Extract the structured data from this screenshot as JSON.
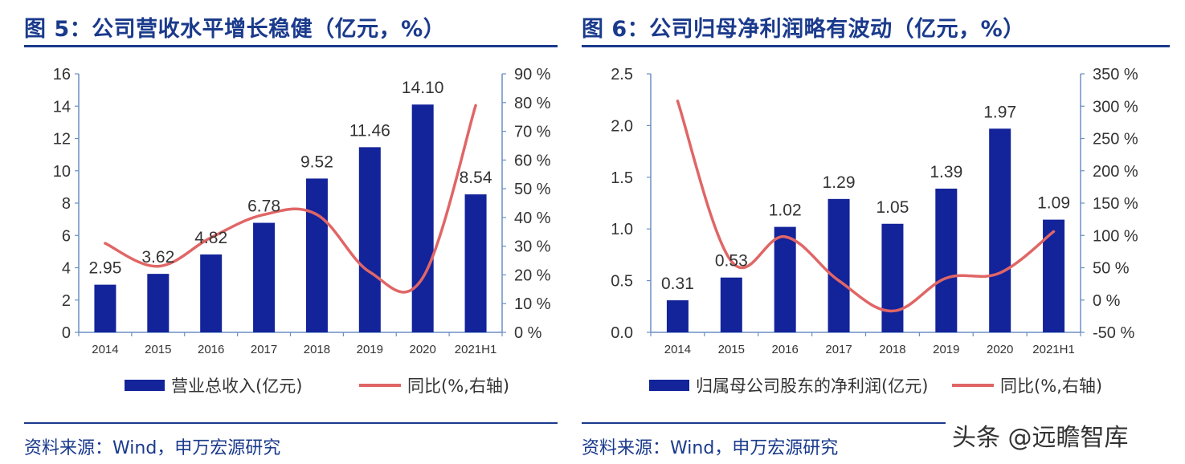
{
  "figures": [
    {
      "title": "图 5：公司营收水平增长稳健（亿元，%）",
      "source": "资料来源：Wind，申万宏源研究",
      "legend": {
        "bar_label": "营业总收入(亿元)",
        "line_label": "同比(%,右轴)"
      }
    },
    {
      "title": "图 6：公司归母净利润略有波动（亿元，%）",
      "source": "资料来源：Wind，申万宏源研究",
      "legend": {
        "bar_label": "归属母公司股东的净利润(亿元)",
        "line_label": "同比(%,右轴)"
      }
    }
  ],
  "watermark": "头条 @远瞻智库",
  "chart_data": [
    {
      "type": "bar",
      "categories": [
        "2014",
        "2015",
        "2016",
        "2017",
        "2018",
        "2019",
        "2020",
        "2021H1"
      ],
      "series": [
        {
          "name": "营业总收入(亿元)",
          "type": "bar",
          "axis": "left",
          "values": [
            2.95,
            3.62,
            4.82,
            6.78,
            9.52,
            11.46,
            14.1,
            8.54
          ],
          "labels": [
            "2.95",
            "3.62",
            "4.82",
            "6.78",
            "9.52",
            "11.46",
            "14.10",
            "8.54"
          ]
        },
        {
          "name": "同比(%,右轴)",
          "type": "line",
          "axis": "right",
          "values": [
            31,
            23,
            33,
            41,
            41,
            21,
            19,
            79
          ]
        }
      ],
      "y_left": {
        "min": 0,
        "max": 16,
        "ticks": [
          "0",
          "2",
          "4",
          "6",
          "8",
          "10",
          "12",
          "14",
          "16"
        ]
      },
      "y_right": {
        "min": 0,
        "max": 90,
        "ticks": [
          "0 %",
          "10 %",
          "20 %",
          "30 %",
          "40 %",
          "50 %",
          "60 %",
          "70 %",
          "80 %",
          "90 %"
        ]
      },
      "colors": {
        "bar": "#13239a",
        "line": "#e06666",
        "axis": "#6b8fc3"
      },
      "legend_position": "bottom",
      "grid": false
    },
    {
      "type": "bar",
      "categories": [
        "2014",
        "2015",
        "2016",
        "2017",
        "2018",
        "2019",
        "2020",
        "2021H1"
      ],
      "series": [
        {
          "name": "归属母公司股东的净利润(亿元)",
          "type": "bar",
          "axis": "left",
          "values": [
            0.31,
            0.53,
            1.02,
            1.29,
            1.05,
            1.39,
            1.97,
            1.09
          ],
          "labels": [
            "0.31",
            "0.53",
            "1.02",
            "1.29",
            "1.05",
            "1.39",
            "1.97",
            "1.09"
          ]
        },
        {
          "name": "同比(%,右轴)",
          "type": "line",
          "axis": "right",
          "values": [
            308,
            60,
            98,
            30,
            -17,
            34,
            42,
            106
          ]
        }
      ],
      "y_left": {
        "min": 0,
        "max": 2.5,
        "ticks": [
          "0.0",
          "0.5",
          "1.0",
          "1.5",
          "2.0",
          "2.5"
        ]
      },
      "y_right": {
        "min": -50,
        "max": 350,
        "ticks": [
          "-50 %",
          "0 %",
          "50 %",
          "100 %",
          "150 %",
          "200 %",
          "250 %",
          "300 %",
          "350 %"
        ]
      },
      "colors": {
        "bar": "#13239a",
        "line": "#e06666",
        "axis": "#6b8fc3"
      },
      "legend_position": "bottom",
      "grid": false
    }
  ]
}
